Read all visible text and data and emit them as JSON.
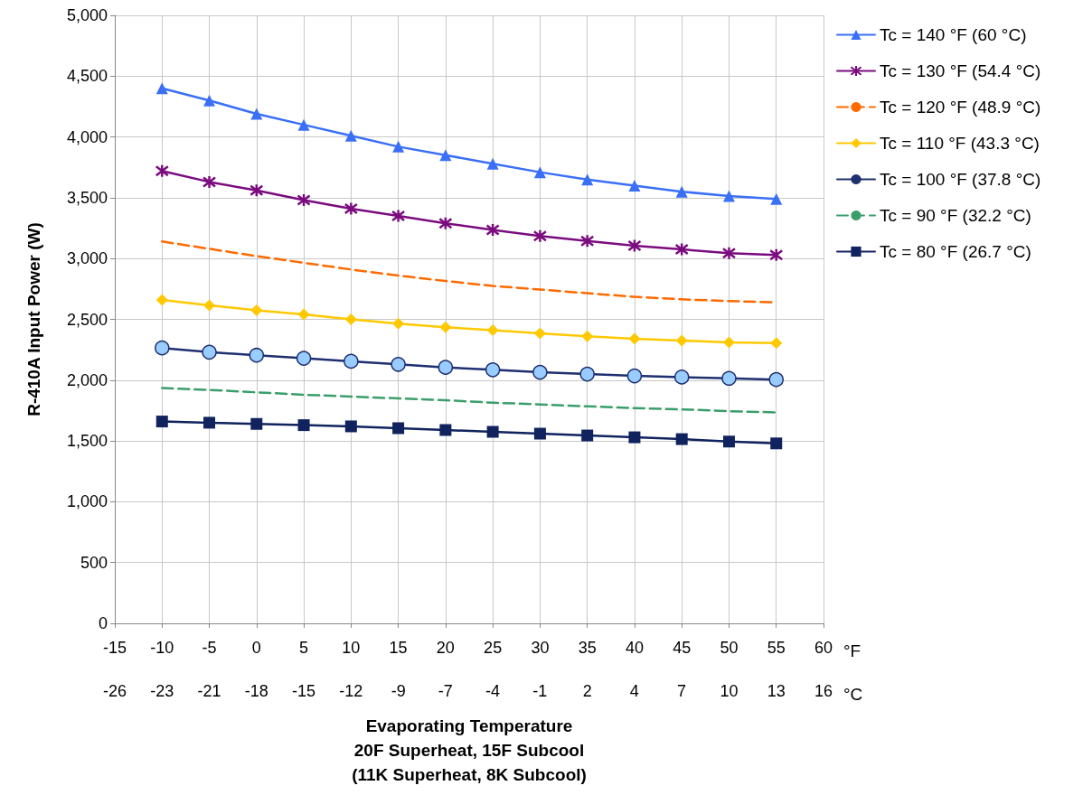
{
  "chart_data": {
    "type": "line",
    "xlabel": "Evaporating Temperature\n20F Superheat, 15F Subcool\n(11K Superheat, 8K Subcool)",
    "ylabel": "R-410A Input Power (W)",
    "annotations": [
      "°F",
      "°C"
    ],
    "x": [
      -10,
      -5,
      0,
      5,
      10,
      15,
      20,
      25,
      30,
      35,
      40,
      45,
      50,
      55
    ],
    "xlim": [
      -15,
      60
    ],
    "xticks": [
      -15,
      -10,
      -5,
      0,
      5,
      10,
      15,
      20,
      25,
      30,
      35,
      40,
      45,
      50,
      55,
      60
    ],
    "x2lim": [
      -26.11,
      15.56
    ],
    "x2ticks": [
      {
        "value": -26.11,
        "label": "-26"
      },
      {
        "value": -23.33,
        "label": "-23"
      },
      {
        "value": -20.56,
        "label": "-21"
      },
      {
        "value": -17.78,
        "label": "-18"
      },
      {
        "value": -15,
        "label": "-15"
      },
      {
        "value": -12.22,
        "label": "-12"
      },
      {
        "value": -9.44,
        "label": "-9"
      },
      {
        "value": -6.67,
        "label": "-7"
      },
      {
        "value": -3.89,
        "label": "-4"
      },
      {
        "value": -1.11,
        "label": "-1"
      },
      {
        "value": 1.67,
        "label": "2"
      },
      {
        "value": 4.44,
        "label": "4"
      },
      {
        "value": 7.22,
        "label": "7"
      },
      {
        "value": 10,
        "label": "10"
      },
      {
        "value": 12.78,
        "label": "13"
      },
      {
        "value": 15.56,
        "label": "16"
      }
    ],
    "ylim": [
      0,
      5000
    ],
    "yticks": [
      0,
      500,
      {
        "value": 1000,
        "label": "1,000"
      },
      {
        "value": 1500,
        "label": "1,500"
      },
      {
        "value": 2000,
        "label": "2,000"
      },
      {
        "value": 2500,
        "label": "2,500"
      },
      {
        "value": 3000,
        "label": "3,000"
      },
      {
        "value": 3500,
        "label": "3,500"
      },
      {
        "value": 4000,
        "label": "4,000"
      },
      {
        "value": 4500,
        "label": "4,500"
      },
      {
        "value": 5000,
        "label": "5,000"
      }
    ],
    "grid": true,
    "legend": "right",
    "series": [
      {
        "name": "Tc = 140 °F (60 °C)",
        "color": "#3a6ff7",
        "marker": "triangle",
        "line_style": "solid",
        "values": [
          4400,
          4300,
          4190,
          4100,
          4010,
          3920,
          3850,
          3780,
          3710,
          3650,
          3600,
          3550,
          3515,
          3490
        ]
      },
      {
        "name": "Tc = 130 °F (54.4 °C)",
        "color": "#7b0c7f",
        "marker": "cross",
        "line_style": "solid",
        "values": [
          3720,
          3630,
          3560,
          3480,
          3410,
          3350,
          3290,
          3235,
          3185,
          3145,
          3105,
          3075,
          3045,
          3030
        ]
      },
      {
        "name": "Tc = 120 °F (48.9 °C)",
        "color": "#ff6a00",
        "marker": "none",
        "line_style": "dashed",
        "values": [
          3140,
          3080,
          3020,
          2965,
          2910,
          2860,
          2815,
          2775,
          2745,
          2715,
          2685,
          2665,
          2650,
          2640
        ]
      },
      {
        "name": "Tc = 110 °F (43.3 °C)",
        "color": "#ffc800",
        "marker": "diamond",
        "line_style": "solid",
        "values": [
          2660,
          2615,
          2575,
          2540,
          2500,
          2465,
          2435,
          2410,
          2385,
          2360,
          2340,
          2325,
          2310,
          2305
        ]
      },
      {
        "name": "Tc = 100 °F (37.8 °C)",
        "color": "#1f2f6f",
        "colors": [
          "#99ccff",
          "#99ccff",
          "#99ccff",
          "#99ccff",
          "#99ccff",
          "#99ccff",
          "#99ccff",
          "#99ccff",
          "#99ccff",
          "#99ccff",
          "#99ccff",
          "#99ccff",
          "#99ccff",
          "#99ccff"
        ],
        "marker": "circle",
        "line_style": "solid",
        "values": [
          2265,
          2230,
          2205,
          2180,
          2155,
          2130,
          2105,
          2085,
          2065,
          2050,
          2035,
          2025,
          2015,
          2005
        ]
      },
      {
        "name": "Tc = 90 °F (32.2 °C)",
        "color": "#3a9e6a",
        "marker": "none",
        "line_style": "dashed",
        "values": [
          1935,
          1920,
          1900,
          1880,
          1865,
          1850,
          1835,
          1815,
          1800,
          1785,
          1770,
          1760,
          1745,
          1735
        ]
      },
      {
        "name": "Tc = 80 °F (26.7 °C)",
        "color": "#10235e",
        "marker": "square",
        "line_style": "solid",
        "values": [
          1660,
          1650,
          1640,
          1630,
          1620,
          1605,
          1590,
          1575,
          1560,
          1545,
          1530,
          1515,
          1495,
          1480
        ]
      }
    ]
  }
}
